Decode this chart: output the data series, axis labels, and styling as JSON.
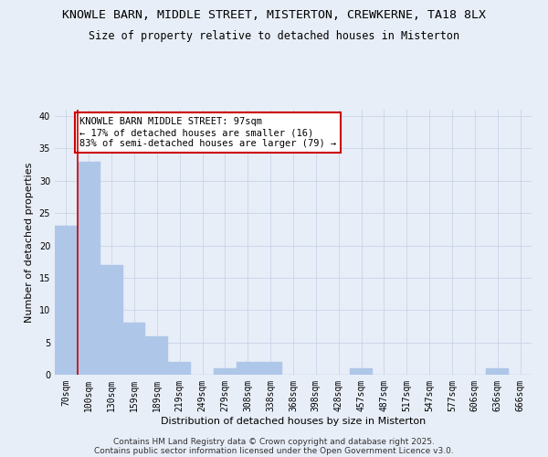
{
  "title_line1": "KNOWLE BARN, MIDDLE STREET, MISTERTON, CREWKERNE, TA18 8LX",
  "title_line2": "Size of property relative to detached houses in Misterton",
  "xlabel": "Distribution of detached houses by size in Misterton",
  "ylabel": "Number of detached properties",
  "categories": [
    "70sqm",
    "100sqm",
    "130sqm",
    "159sqm",
    "189sqm",
    "219sqm",
    "249sqm",
    "279sqm",
    "308sqm",
    "338sqm",
    "368sqm",
    "398sqm",
    "428sqm",
    "457sqm",
    "487sqm",
    "517sqm",
    "547sqm",
    "577sqm",
    "606sqm",
    "636sqm",
    "666sqm"
  ],
  "values": [
    23,
    33,
    17,
    8,
    6,
    2,
    0,
    1,
    2,
    2,
    0,
    0,
    0,
    1,
    0,
    0,
    0,
    0,
    0,
    1,
    0
  ],
  "bar_color": "#aec6e8",
  "bar_edge_color": "#aec6e8",
  "grid_color": "#c8d4e8",
  "background_color": "#e8eef8",
  "red_line_x": 0.5,
  "annotation_text": "KNOWLE BARN MIDDLE STREET: 97sqm\n← 17% of detached houses are smaller (16)\n83% of semi-detached houses are larger (79) →",
  "annotation_box_color": "#ffffff",
  "annotation_border_color": "#cc0000",
  "ylim": [
    0,
    41
  ],
  "yticks": [
    0,
    5,
    10,
    15,
    20,
    25,
    30,
    35,
    40
  ],
  "footer_line1": "Contains HM Land Registry data © Crown copyright and database right 2025.",
  "footer_line2": "Contains public sector information licensed under the Open Government Licence v3.0.",
  "title_fontsize": 9.5,
  "subtitle_fontsize": 8.5,
  "axis_label_fontsize": 8,
  "tick_fontsize": 7,
  "annotation_fontsize": 7.5,
  "footer_fontsize": 6.5
}
